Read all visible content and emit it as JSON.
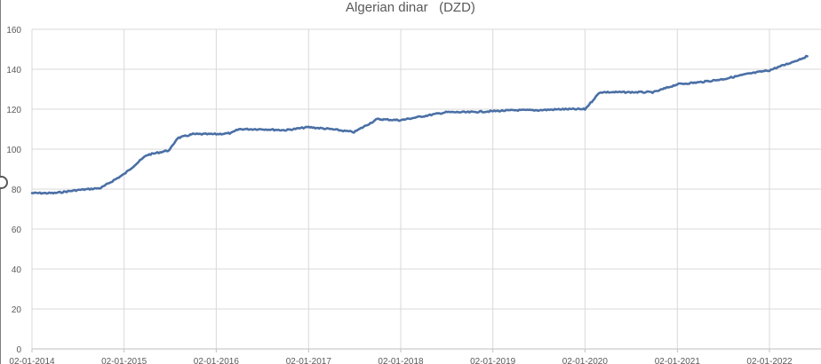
{
  "chart_data": {
    "type": "line",
    "title": "Algerian dinar   (DZD)",
    "xlabel": "",
    "ylabel": "",
    "ylim": [
      0,
      160
    ],
    "yticks": [
      0,
      20,
      40,
      60,
      80,
      100,
      120,
      140,
      160
    ],
    "xticks": [
      "02-01-2014",
      "02-01-2015",
      "02-01-2016",
      "02-01-2017",
      "02-01-2018",
      "02-01-2019",
      "02-01-2020",
      "02-01-2021",
      "02-01-2022"
    ],
    "grid": true,
    "legend": "none",
    "line_color": "#4a6fa5",
    "series": [
      {
        "x": [
          "02-01-2014",
          "01-04-2014",
          "01-07-2014",
          "01-10-2014",
          "02-01-2015",
          "01-04-2015",
          "01-07-2015",
          "01-08-2015",
          "01-10-2015",
          "02-01-2016",
          "01-03-2016",
          "01-04-2016",
          "01-07-2016",
          "01-10-2016",
          "02-01-2017",
          "01-04-2017",
          "01-07-2017",
          "01-10-2017",
          "02-01-2018",
          "01-04-2018",
          "01-07-2018",
          "01-10-2018",
          "02-01-2019",
          "01-04-2019",
          "01-07-2019",
          "01-10-2019",
          "02-01-2020",
          "01-03-2020",
          "01-04-2020",
          "01-07-2020",
          "01-10-2020",
          "02-01-2021",
          "01-04-2021",
          "01-07-2021",
          "01-10-2021",
          "02-01-2022",
          "01-04-2022",
          "01-06-2022"
        ],
        "values": [
          78,
          78,
          79.5,
          80.5,
          87.5,
          97,
          99.5,
          105.5,
          107.5,
          107.5,
          108,
          110,
          110,
          109.5,
          111,
          110,
          108.5,
          115,
          114.5,
          116.5,
          118.5,
          118.5,
          119,
          119.5,
          119.5,
          120,
          120,
          128.5,
          128.5,
          128.5,
          128.5,
          132.5,
          133.5,
          135,
          137.5,
          139.5,
          143.5,
          146.5
        ]
      }
    ]
  },
  "ui": {
    "resize_handle_icon": "circle-resize-handle-icon"
  }
}
